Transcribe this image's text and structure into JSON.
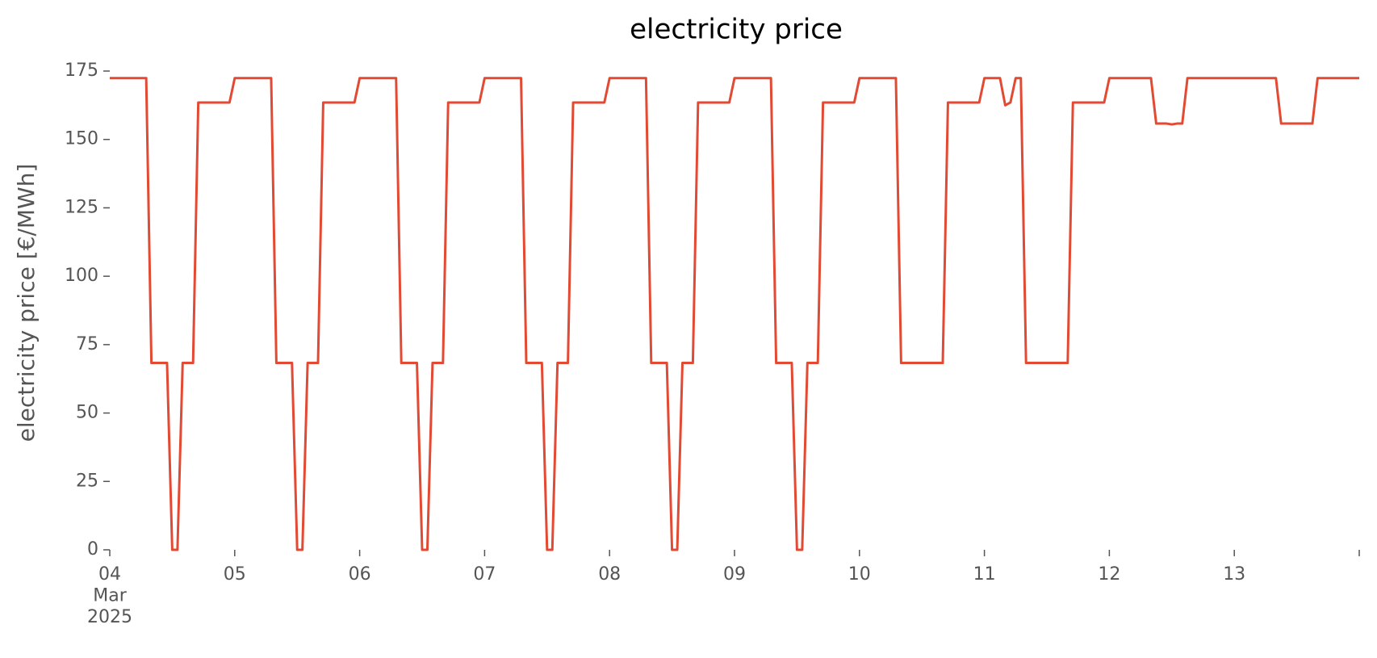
{
  "chart_data": {
    "type": "line",
    "title": "electricity price",
    "ylabel": "electricity price [€/MWh]",
    "x": [
      "2025-03-04T00:00",
      "2025-03-04T07:00",
      "2025-03-04T08:00",
      "2025-03-04T11:00",
      "2025-03-04T12:00",
      "2025-03-04T13:00",
      "2025-03-04T14:00",
      "2025-03-04T16:00",
      "2025-03-04T17:00",
      "2025-03-04T23:00",
      "2025-03-05T00:00",
      "2025-03-05T07:00",
      "2025-03-05T08:00",
      "2025-03-05T11:00",
      "2025-03-05T12:00",
      "2025-03-05T13:00",
      "2025-03-05T14:00",
      "2025-03-05T16:00",
      "2025-03-05T17:00",
      "2025-03-05T23:00",
      "2025-03-06T00:00",
      "2025-03-06T07:00",
      "2025-03-06T08:00",
      "2025-03-06T11:00",
      "2025-03-06T12:00",
      "2025-03-06T13:00",
      "2025-03-06T14:00",
      "2025-03-06T16:00",
      "2025-03-06T17:00",
      "2025-03-06T23:00",
      "2025-03-07T00:00",
      "2025-03-07T07:00",
      "2025-03-07T08:00",
      "2025-03-07T11:00",
      "2025-03-07T12:00",
      "2025-03-07T13:00",
      "2025-03-07T14:00",
      "2025-03-07T16:00",
      "2025-03-07T17:00",
      "2025-03-07T23:00",
      "2025-03-08T00:00",
      "2025-03-08T07:00",
      "2025-03-08T08:00",
      "2025-03-08T11:00",
      "2025-03-08T12:00",
      "2025-03-08T13:00",
      "2025-03-08T14:00",
      "2025-03-08T16:00",
      "2025-03-08T17:00",
      "2025-03-08T23:00",
      "2025-03-09T00:00",
      "2025-03-09T07:00",
      "2025-03-09T08:00",
      "2025-03-09T11:00",
      "2025-03-09T12:00",
      "2025-03-09T13:00",
      "2025-03-09T14:00",
      "2025-03-09T16:00",
      "2025-03-09T17:00",
      "2025-03-09T23:00",
      "2025-03-10T00:00",
      "2025-03-10T07:00",
      "2025-03-10T08:00",
      "2025-03-10T16:00",
      "2025-03-10T17:00",
      "2025-03-10T23:00",
      "2025-03-11T00:00",
      "2025-03-11T03:00",
      "2025-03-11T04:00",
      "2025-03-11T05:00",
      "2025-03-11T06:00",
      "2025-03-11T07:00",
      "2025-03-11T08:00",
      "2025-03-11T16:00",
      "2025-03-11T17:00",
      "2025-03-11T23:00",
      "2025-03-12T00:00",
      "2025-03-12T08:00",
      "2025-03-12T09:00",
      "2025-03-12T11:00",
      "2025-03-12T12:00",
      "2025-03-12T13:00",
      "2025-03-12T14:00",
      "2025-03-12T15:00",
      "2025-03-13T08:00",
      "2025-03-13T09:00",
      "2025-03-13T15:00",
      "2025-03-13T16:00",
      "2025-03-14T00:00"
    ],
    "series": [
      {
        "name": "electricity price",
        "color": "#e24a33",
        "values": [
          172.4,
          172.4,
          68.3,
          68.3,
          0,
          0,
          68.3,
          68.3,
          163.5,
          163.5,
          172.4,
          172.4,
          68.3,
          68.3,
          0,
          0,
          68.3,
          68.3,
          163.5,
          163.5,
          172.4,
          172.4,
          68.3,
          68.3,
          0,
          0,
          68.3,
          68.3,
          163.5,
          163.5,
          172.4,
          172.4,
          68.3,
          68.3,
          0,
          0,
          68.3,
          68.3,
          163.5,
          163.5,
          172.4,
          172.4,
          68.3,
          68.3,
          0,
          0,
          68.3,
          68.3,
          163.5,
          163.5,
          172.4,
          172.4,
          68.3,
          68.3,
          0,
          0,
          68.3,
          68.3,
          163.5,
          163.5,
          172.4,
          172.4,
          68.3,
          68.3,
          163.5,
          163.5,
          172.4,
          172.4,
          162.5,
          163.5,
          172.4,
          172.4,
          68.3,
          68.3,
          163.5,
          163.5,
          172.4,
          172.4,
          155.8,
          155.8,
          155.5,
          155.8,
          155.8,
          172.4,
          172.4,
          155.8,
          155.8,
          172.4,
          172.4
        ]
      }
    ],
    "xlim": [
      "2025-03-04T00:00",
      "2025-03-14T00:00"
    ],
    "xticks": [
      {
        "value": "2025-03-04T00:00",
        "label": "04\nMar\n2025"
      },
      {
        "value": "2025-03-05T00:00",
        "label": "05"
      },
      {
        "value": "2025-03-06T00:00",
        "label": "06"
      },
      {
        "value": "2025-03-07T00:00",
        "label": "07"
      },
      {
        "value": "2025-03-08T00:00",
        "label": "08"
      },
      {
        "value": "2025-03-09T00:00",
        "label": "09"
      },
      {
        "value": "2025-03-10T00:00",
        "label": "10"
      },
      {
        "value": "2025-03-11T00:00",
        "label": "11"
      },
      {
        "value": "2025-03-12T00:00",
        "label": "12"
      },
      {
        "value": "2025-03-13T00:00",
        "label": "13"
      }
    ],
    "ylim": [
      0,
      175
    ],
    "yticks": [
      0,
      25,
      50,
      75,
      100,
      125,
      150,
      175
    ],
    "grid": false
  }
}
